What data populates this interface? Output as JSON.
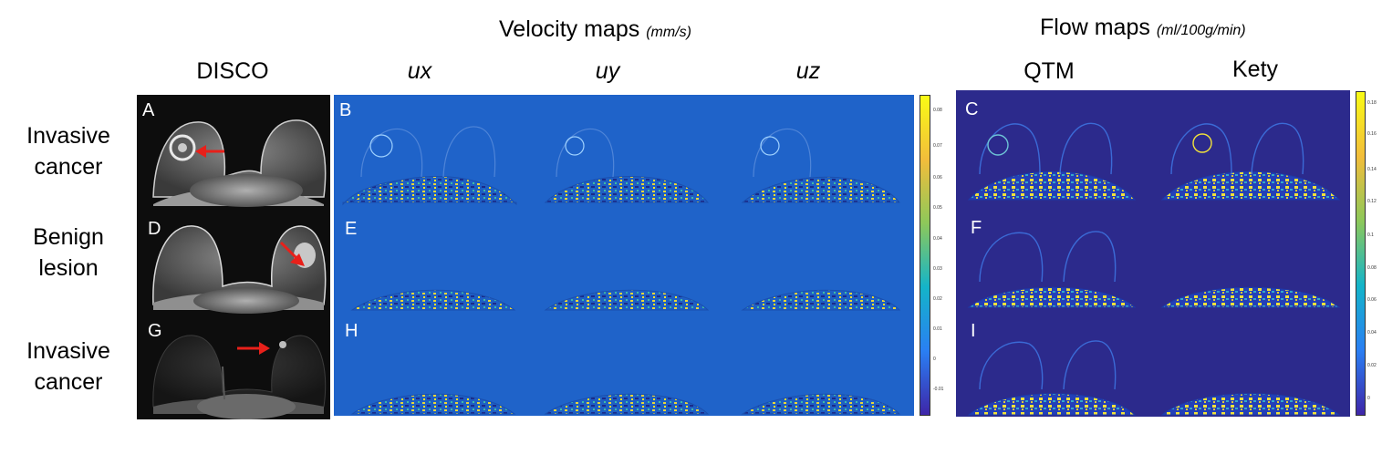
{
  "headers": {
    "velocity_title": "Velocity maps",
    "velocity_unit": "(mm/s)",
    "flow_title": "Flow maps",
    "flow_unit": "(ml/100g/min)"
  },
  "columns": [
    "DISCO",
    "ux",
    "uy",
    "uz",
    "QTM",
    "Kety"
  ],
  "rows": [
    {
      "line1": "Invasive",
      "line2": "cancer"
    },
    {
      "line1": "Benign",
      "line2": "lesion"
    },
    {
      "line1": "Invasive",
      "line2": "cancer"
    }
  ],
  "panel_labels": [
    "A",
    "B",
    "C",
    "D",
    "E",
    "F",
    "G",
    "H",
    "I"
  ],
  "velocity_colorbar": {
    "ticks": [
      "0.08",
      "0.07",
      "0.06",
      "0.05",
      "0.04",
      "0.03",
      "0.02",
      "0.01",
      "0",
      "-0.01"
    ],
    "colormap": [
      "#3e26a8",
      "#2a7ff3",
      "#14b4c9",
      "#8dc85a",
      "#f2bd3b",
      "#f9fb15"
    ]
  },
  "flow_colorbar": {
    "ticks": [
      "0.18",
      "0.16",
      "0.14",
      "0.12",
      "0.1",
      "0.08",
      "0.06",
      "0.04",
      "0.02",
      "0"
    ],
    "colormap": [
      "#3e26a8",
      "#2a7ff3",
      "#14b4c9",
      "#8dc85a",
      "#f2bd3b",
      "#f9fb15"
    ]
  },
  "arrow_color": "#e8201a"
}
